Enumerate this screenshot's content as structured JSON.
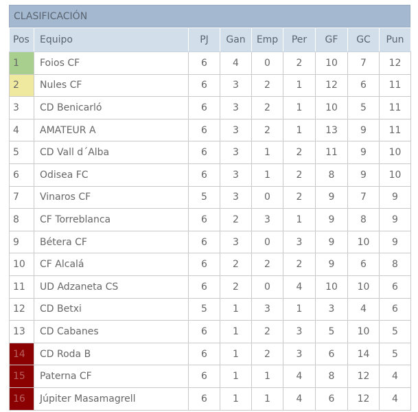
{
  "title": "CLASIFICACIÓN",
  "colors": {
    "title_bg": "#a4b9d0",
    "header_bg": "#d3deeb",
    "first": "#a9cf8e",
    "second": "#efe9a0",
    "relegation": "#8b0000"
  },
  "headers": [
    "Pos",
    "Equipo",
    "PJ",
    "Gan",
    "Emp",
    "Per",
    "GF",
    "GC",
    "Pun"
  ],
  "rows": [
    [
      "1",
      "Foios CF",
      "6",
      "4",
      "0",
      "2",
      "10",
      "7",
      "12"
    ],
    [
      "2",
      "Nules CF",
      "6",
      "3",
      "2",
      "1",
      "12",
      "6",
      "11"
    ],
    [
      "3",
      "CD Benicarló",
      "6",
      "3",
      "2",
      "1",
      "10",
      "5",
      "11"
    ],
    [
      "4",
      "AMATEUR A",
      "6",
      "3",
      "2",
      "1",
      "13",
      "9",
      "11"
    ],
    [
      "5",
      "CD Vall d´Alba",
      "6",
      "3",
      "1",
      "2",
      "11",
      "9",
      "10"
    ],
    [
      "6",
      "Odisea FC",
      "6",
      "3",
      "1",
      "2",
      "8",
      "9",
      "10"
    ],
    [
      "7",
      "Vinaros CF",
      "5",
      "3",
      "0",
      "2",
      "9",
      "7",
      "9"
    ],
    [
      "8",
      "CF Torreblanca",
      "6",
      "2",
      "3",
      "1",
      "9",
      "8",
      "9"
    ],
    [
      "9",
      "Bétera CF",
      "6",
      "3",
      "0",
      "3",
      "9",
      "10",
      "9"
    ],
    [
      "10",
      "CF Alcalá",
      "6",
      "2",
      "2",
      "2",
      "9",
      "6",
      "8"
    ],
    [
      "11",
      "UD Adzaneta CS",
      "6",
      "2",
      "0",
      "4",
      "10",
      "10",
      "6"
    ],
    [
      "12",
      "CD Betxi",
      "5",
      "1",
      "3",
      "1",
      "3",
      "4",
      "6"
    ],
    [
      "13",
      "CD Cabanes",
      "6",
      "1",
      "2",
      "3",
      "5",
      "10",
      "5"
    ],
    [
      "14",
      "CD Roda B",
      "6",
      "1",
      "2",
      "3",
      "6",
      "14",
      "5"
    ],
    [
      "15",
      "Paterna CF",
      "6",
      "1",
      "1",
      "4",
      "8",
      "12",
      "4"
    ],
    [
      "16",
      "Júpiter Masamagrell",
      "6",
      "1",
      "1",
      "4",
      "6",
      "12",
      "4"
    ]
  ]
}
